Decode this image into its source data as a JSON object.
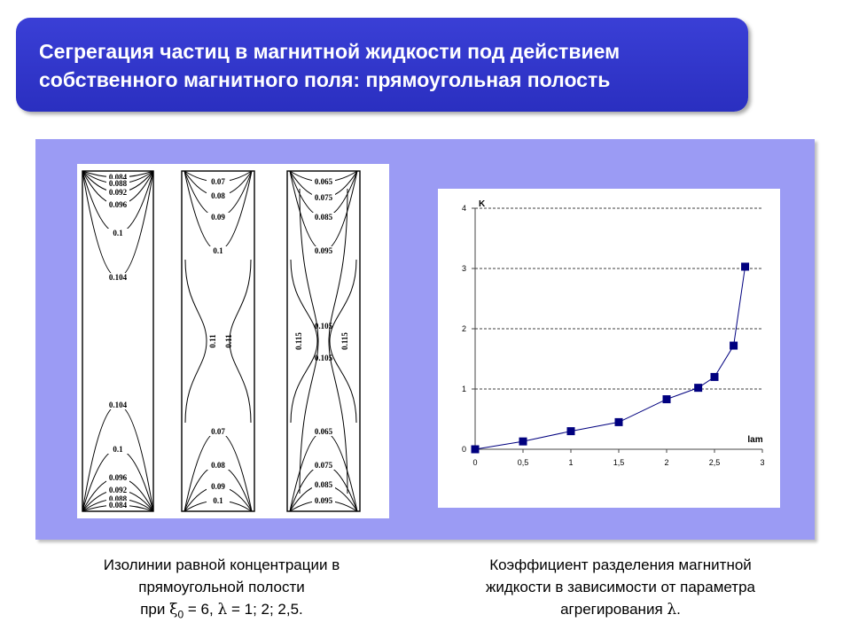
{
  "title": {
    "line1": "Сегрегация частиц в магнитной жидкости под действием",
    "line2": "собственного магнитного поля: прямоугольная полость"
  },
  "isolines": {
    "panel1": {
      "top": [
        "0.084",
        "0.088",
        "0.092",
        "0.096",
        "0.1",
        "0.104"
      ],
      "bottom": [
        "0.104",
        "0.1",
        "0.096",
        "0.092",
        "0.088",
        "0.084"
      ]
    },
    "panel2": {
      "top": [
        "0.07",
        "0.08",
        "0.09",
        "0.1"
      ],
      "middle": [
        "0.11",
        "0.11"
      ],
      "bottom": [
        "0.1",
        "0.09",
        "0.08",
        "0.07"
      ]
    },
    "panel3": {
      "top": [
        "0.065",
        "0.075",
        "0.085",
        "0.095"
      ],
      "middle": [
        "0.105",
        "0.115",
        "0.115",
        "0.105"
      ],
      "bottom": [
        "0.095",
        "0.085",
        "0.075",
        "0.065"
      ]
    }
  },
  "chart_data": {
    "type": "line",
    "ylabel": "K",
    "xlabel": "lam",
    "xlim": [
      0,
      3
    ],
    "ylim": [
      0,
      4
    ],
    "xticks": [
      "0",
      "0,5",
      "1",
      "1,5",
      "2",
      "2,5",
      "3"
    ],
    "yticks": [
      "0",
      "1",
      "2",
      "3",
      "4"
    ],
    "grid": "horizontal dashed",
    "color": "#00007f",
    "x": [
      0,
      0.5,
      1,
      1.5,
      2,
      2.33,
      2.5,
      2.7,
      2.82
    ],
    "y": [
      0,
      0.13,
      0.3,
      0.45,
      0.83,
      1.02,
      1.2,
      1.72,
      3.03
    ]
  },
  "captions": {
    "left": {
      "line1": "Изолинии равной концентрации в",
      "line2": "прямоугольной полости",
      "line3_pre": "при ",
      "xi": "ξ",
      "sub": "0",
      "line3_mid": " = 6,  ",
      "lambda": "λ",
      "line3_post": " = 1; 2; 2,5."
    },
    "right": {
      "line1": "Коэффициент разделения магнитной",
      "line2": "жидкости в зависимости от параметра",
      "line3_pre": "агрегирования  ",
      "lambda": "λ",
      "line3_post": "."
    }
  }
}
